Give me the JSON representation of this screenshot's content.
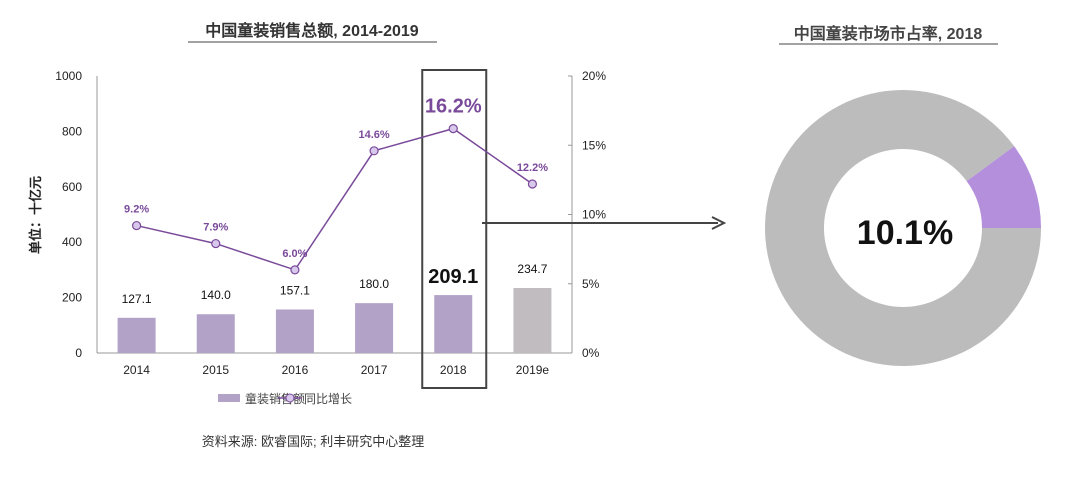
{
  "chart_data": [
    {
      "type": "bar",
      "title": "中国童装销售总额, 2014-2019",
      "ylabel": "单位：十亿元",
      "ylim": [
        0,
        1000
      ],
      "yticks": [
        "0",
        "200",
        "400",
        "600",
        "800",
        "1000"
      ],
      "y2lim": [
        0,
        20
      ],
      "y2ticks": [
        "0%",
        "5%",
        "10%",
        "15%",
        "20%"
      ],
      "categories": [
        "2014",
        "2015",
        "2016",
        "2017",
        "2018",
        "2019e"
      ],
      "series": [
        {
          "name": "童装销售额",
          "kind": "bar",
          "values": [
            127.1,
            140.0,
            157.1,
            180.0,
            209.1,
            234.7
          ],
          "labels": [
            "127.1",
            "140.0",
            "157.1",
            "180.0",
            "209.1",
            "234.7"
          ],
          "color": "#b3a2c8",
          "estimate_color": "#c0bcc0"
        },
        {
          "name": "同比增长",
          "kind": "line",
          "axis": "right",
          "values": [
            9.2,
            7.9,
            6.0,
            14.6,
            16.2,
            12.2
          ],
          "labels": [
            "9.2%",
            "7.9%",
            "6.0%",
            "14.6%",
            "16.2%",
            "12.2%"
          ],
          "color": "#7a4a9a"
        }
      ],
      "highlight": "2018",
      "legend": "bottom",
      "source": "资料来源: 欧睿国际; 利丰研究中心整理"
    },
    {
      "type": "pie",
      "title": "中国童装市场市占率, 2018",
      "values": [
        10.1,
        89.9
      ],
      "colors": [
        "#b48fdc",
        "#bdbcbd"
      ],
      "center_label": "10.1%"
    }
  ]
}
